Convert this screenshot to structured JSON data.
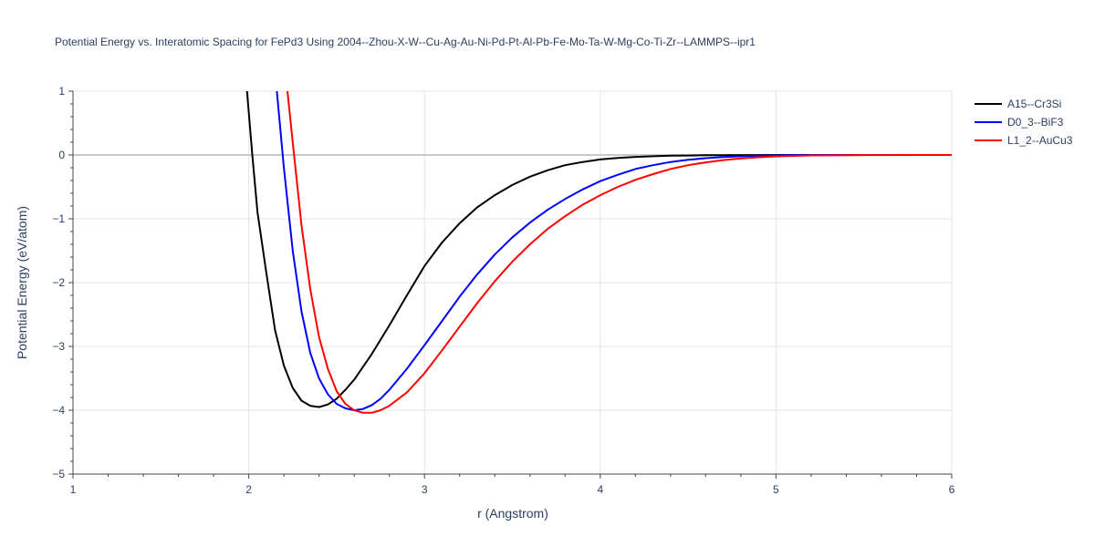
{
  "chart_data": {
    "type": "line",
    "title": "Potential Energy vs. Interatomic Spacing for FePd3 Using 2004--Zhou-X-W--Cu-Ag-Au-Ni-Pd-Pt-Al-Pb-Fe-Mo-Ta-W-Mg-Co-Ti-Zr--LAMMPS--ipr1",
    "xlabel": "r (Angstrom)",
    "ylabel": "Potential Energy (eV/atom)",
    "xlim": [
      1,
      6
    ],
    "ylim": [
      -5,
      1
    ],
    "xticks": [
      1,
      2,
      3,
      4,
      5,
      6
    ],
    "yticks": [
      -5,
      -4,
      -3,
      -2,
      -1,
      0,
      1
    ],
    "ytick_labels": [
      "−5",
      "−4",
      "−3",
      "−2",
      "−1",
      "0",
      "1"
    ],
    "grid": true,
    "legend_position": "top-right",
    "series": [
      {
        "name": "A15--Cr3Si",
        "color": "#000000",
        "x": [
          1.99,
          2.02,
          2.05,
          2.1,
          2.15,
          2.2,
          2.25,
          2.3,
          2.35,
          2.4,
          2.45,
          2.5,
          2.55,
          2.6,
          2.7,
          2.8,
          2.9,
          3.0,
          3.1,
          3.2,
          3.3,
          3.4,
          3.5,
          3.6,
          3.7,
          3.8,
          3.9,
          4.0,
          4.1,
          4.2,
          4.3,
          4.4,
          4.5,
          4.6,
          4.7,
          4.8,
          4.9,
          5.0,
          5.2,
          5.5,
          6.0
        ],
        "y": [
          1.0,
          0.0,
          -0.9,
          -1.85,
          -2.75,
          -3.3,
          -3.65,
          -3.85,
          -3.93,
          -3.95,
          -3.91,
          -3.82,
          -3.68,
          -3.52,
          -3.12,
          -2.67,
          -2.2,
          -1.74,
          -1.37,
          -1.07,
          -0.82,
          -0.63,
          -0.47,
          -0.34,
          -0.24,
          -0.16,
          -0.11,
          -0.07,
          -0.045,
          -0.03,
          -0.02,
          -0.012,
          -0.008,
          -0.005,
          -0.003,
          -0.002,
          -0.001,
          0.0,
          0.0,
          0.0,
          0.0
        ]
      },
      {
        "name": "D0_3--BiF3",
        "color": "#0000ff",
        "x": [
          2.16,
          2.2,
          2.25,
          2.3,
          2.35,
          2.4,
          2.45,
          2.5,
          2.55,
          2.6,
          2.65,
          2.7,
          2.75,
          2.8,
          2.9,
          3.0,
          3.1,
          3.2,
          3.3,
          3.4,
          3.5,
          3.6,
          3.7,
          3.8,
          3.9,
          4.0,
          4.1,
          4.2,
          4.3,
          4.4,
          4.5,
          4.6,
          4.7,
          4.8,
          4.9,
          5.0,
          5.2,
          5.5,
          6.0
        ],
        "y": [
          1.0,
          -0.2,
          -1.5,
          -2.45,
          -3.1,
          -3.5,
          -3.75,
          -3.9,
          -3.97,
          -4.0,
          -3.98,
          -3.92,
          -3.82,
          -3.68,
          -3.35,
          -2.98,
          -2.6,
          -2.22,
          -1.87,
          -1.56,
          -1.29,
          -1.06,
          -0.86,
          -0.69,
          -0.54,
          -0.41,
          -0.31,
          -0.22,
          -0.16,
          -0.11,
          -0.075,
          -0.05,
          -0.032,
          -0.02,
          -0.012,
          -0.007,
          -0.002,
          0.0,
          0.0
        ]
      },
      {
        "name": "L1_2--AuCu3",
        "color": "#ff0000",
        "x": [
          2.22,
          2.25,
          2.3,
          2.35,
          2.4,
          2.45,
          2.5,
          2.55,
          2.6,
          2.65,
          2.7,
          2.75,
          2.8,
          2.9,
          3.0,
          3.1,
          3.2,
          3.3,
          3.4,
          3.5,
          3.6,
          3.7,
          3.8,
          3.9,
          4.0,
          4.1,
          4.2,
          4.3,
          4.4,
          4.5,
          4.6,
          4.7,
          4.8,
          4.9,
          5.0,
          5.2,
          5.5,
          6.0
        ],
        "y": [
          1.0,
          0.2,
          -1.1,
          -2.1,
          -2.85,
          -3.35,
          -3.7,
          -3.9,
          -4.0,
          -4.04,
          -4.04,
          -4.0,
          -3.93,
          -3.72,
          -3.42,
          -3.06,
          -2.69,
          -2.32,
          -1.98,
          -1.67,
          -1.4,
          -1.16,
          -0.96,
          -0.78,
          -0.63,
          -0.5,
          -0.39,
          -0.3,
          -0.22,
          -0.16,
          -0.115,
          -0.08,
          -0.055,
          -0.036,
          -0.022,
          -0.007,
          -0.001,
          0.0
        ]
      }
    ]
  }
}
